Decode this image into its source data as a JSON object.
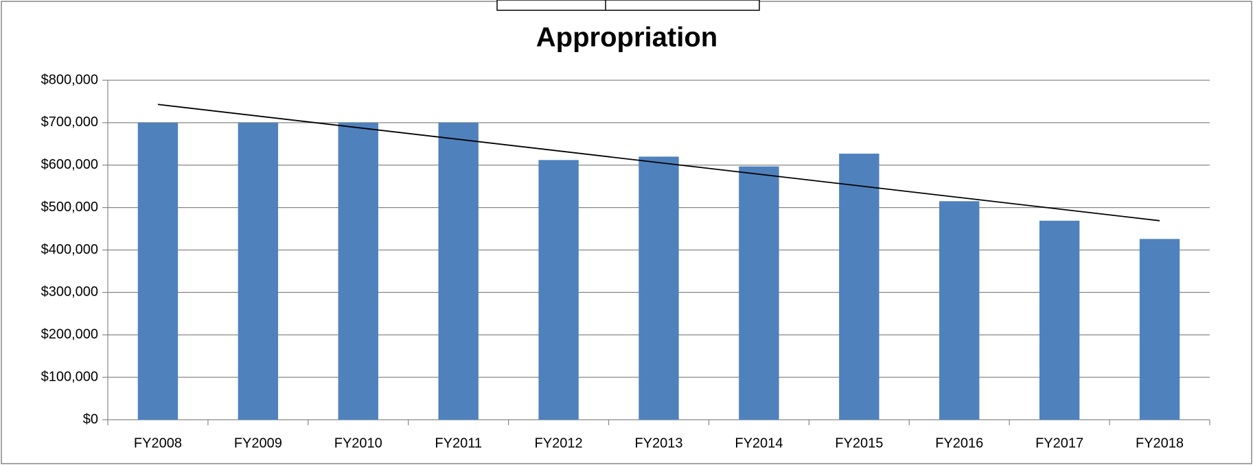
{
  "chart_data": {
    "type": "bar",
    "title": "Appropriation",
    "categories": [
      "FY2008",
      "FY2009",
      "FY2010",
      "FY2011",
      "FY2012",
      "FY2013",
      "FY2014",
      "FY2015",
      "FY2016",
      "FY2017",
      "FY2018"
    ],
    "values": [
      700000,
      700000,
      700000,
      700000,
      612000,
      620000,
      597000,
      627000,
      515000,
      469000,
      426000
    ],
    "color": "#4f81bd",
    "trendline": {
      "color": "#000000",
      "values": [
        743000,
        469000
      ]
    },
    "ylim": [
      0,
      800000
    ],
    "yticks": [
      {
        "value": 0,
        "label": "$0"
      },
      {
        "value": 100000,
        "label": "$100,000"
      },
      {
        "value": 200000,
        "label": "$200,000"
      },
      {
        "value": 300000,
        "label": "$300,000"
      },
      {
        "value": 400000,
        "label": "$400,000"
      },
      {
        "value": 500000,
        "label": "$500,000"
      },
      {
        "value": 600000,
        "label": "$600,000"
      },
      {
        "value": 700000,
        "label": "$700,000"
      },
      {
        "value": 800000,
        "label": "$800,000"
      }
    ],
    "grid": true
  }
}
